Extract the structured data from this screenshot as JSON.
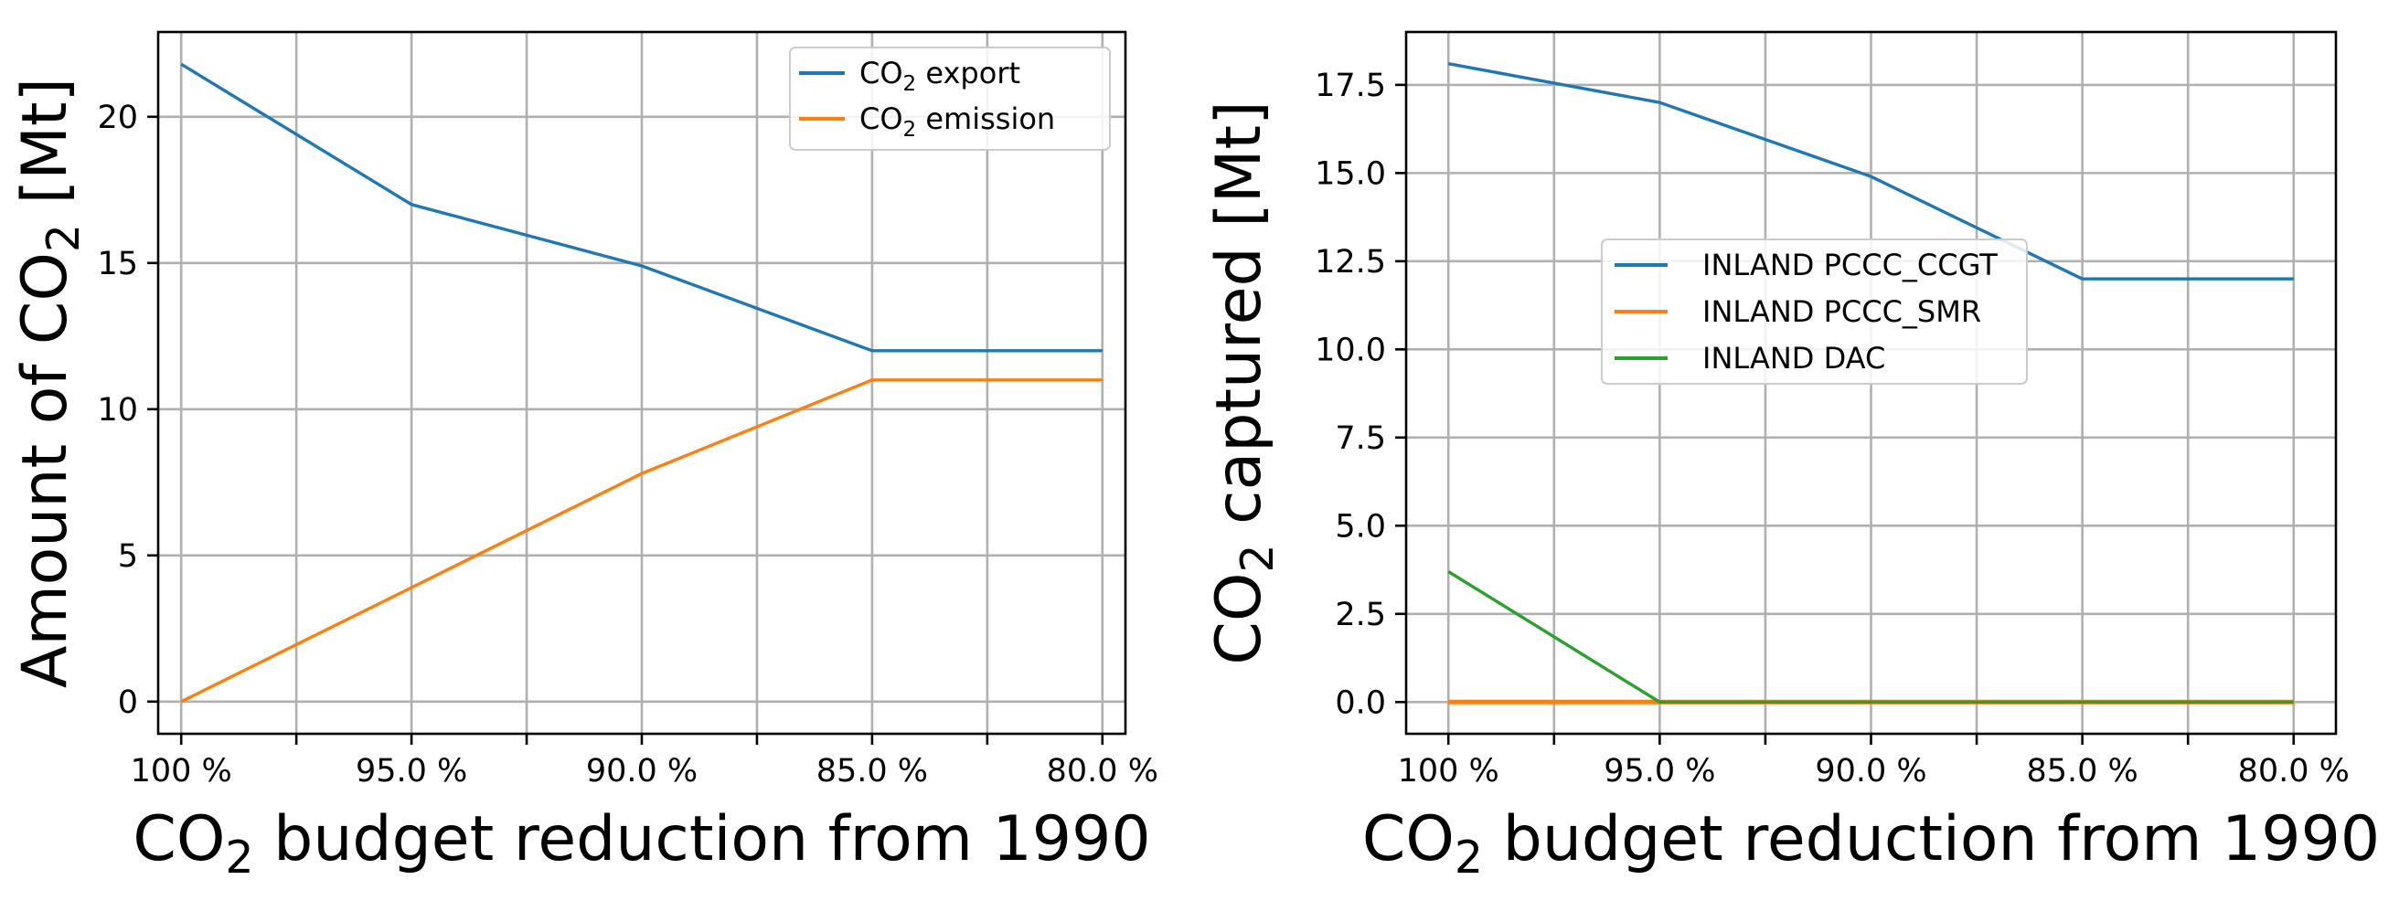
{
  "chart_data": [
    {
      "type": "line",
      "title": "",
      "xlabel": {
        "pre": "CO",
        "sub": "2",
        "post": " budget reduction from 1990"
      },
      "ylabel": {
        "pre": "Amount of CO",
        "sub": "2",
        "post": " [Mt]"
      },
      "categories": [
        "100 %",
        "95.0 %",
        "90.0 %",
        "85.0 %",
        "80.0 %"
      ],
      "x": [
        0,
        2,
        4,
        6,
        8
      ],
      "xlim": [
        -0.2,
        8.2
      ],
      "ylim": [
        -1.1,
        22.9
      ],
      "yticks": [
        0,
        5,
        10,
        15,
        20
      ],
      "ytick_labels": [
        "0",
        "5",
        "10",
        "15",
        "20"
      ],
      "xtick_positions": [
        0,
        1,
        2,
        3,
        4,
        5,
        6,
        7,
        8
      ],
      "legend_position": "top-right",
      "series": [
        {
          "name": {
            "pre": "CO",
            "sub": "2",
            "post": " export"
          },
          "color": "#1f77b4",
          "x": [
            0,
            2,
            4,
            6,
            8
          ],
          "values": [
            21.8,
            17.0,
            14.9,
            12.0,
            12.0
          ]
        },
        {
          "name": {
            "pre": "CO",
            "sub": "2",
            "post": " emission"
          },
          "color": "#ff7f0e",
          "x": [
            0,
            2,
            4,
            6,
            8
          ],
          "values": [
            0.0,
            3.9,
            7.8,
            11.0,
            11.0
          ]
        }
      ]
    },
    {
      "type": "line",
      "title": "",
      "xlabel": {
        "pre": "CO",
        "sub": "2",
        "post": " budget reduction from 1990"
      },
      "ylabel": {
        "pre": "CO",
        "sub": "2",
        "post": " captured [Mt]"
      },
      "categories": [
        "100 %",
        "95.0 %",
        "90.0 %",
        "85.0 %",
        "80.0 %"
      ],
      "x": [
        0,
        2,
        4,
        6,
        8
      ],
      "xlim": [
        -0.4,
        8.4
      ],
      "ylim": [
        -0.9,
        19.0
      ],
      "yticks": [
        0,
        2.5,
        5,
        7.5,
        10,
        12.5,
        15,
        17.5
      ],
      "ytick_labels": [
        "0.0",
        "2.5",
        "5.0",
        "7.5",
        "10.0",
        "12.5",
        "15.0",
        "17.5"
      ],
      "xtick_positions": [
        0,
        1,
        2,
        3,
        4,
        5,
        6,
        7,
        8
      ],
      "legend_position": "center",
      "series": [
        {
          "name": {
            "pre": "INLAND PCCC_CCGT",
            "sub": "",
            "post": ""
          },
          "color": "#1f77b4",
          "x": [
            0,
            2,
            4,
            6,
            8
          ],
          "values": [
            18.1,
            17.0,
            14.9,
            12.0,
            12.0
          ]
        },
        {
          "name": {
            "pre": "INLAND PCCC_SMR",
            "sub": "",
            "post": ""
          },
          "color": "#ff7f0e",
          "x": [
            0,
            2,
            4,
            6,
            8
          ],
          "values": [
            0.0,
            0.0,
            0.0,
            0.0,
            0.0
          ]
        },
        {
          "name": {
            "pre": "INLAND DAC",
            "sub": "",
            "post": ""
          },
          "color": "#2ca02c",
          "x": [
            0,
            2,
            4,
            6,
            8
          ],
          "values": [
            3.7,
            0.0,
            0.0,
            0.0,
            0.0
          ]
        }
      ]
    }
  ]
}
